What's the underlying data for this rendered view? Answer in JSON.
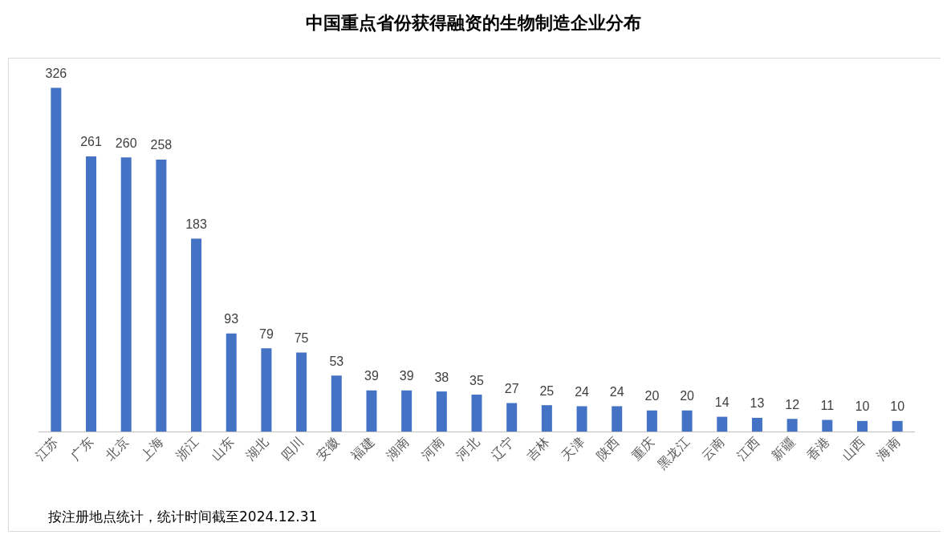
{
  "chart_data": {
    "type": "bar",
    "title": "中国重点省份获得融资的生物制造企业分布",
    "categories": [
      "江苏",
      "广东",
      "北京",
      "上海",
      "浙江",
      "山东",
      "湖北",
      "四川",
      "安徽",
      "福建",
      "湖南",
      "河南",
      "河北",
      "辽宁",
      "吉林",
      "天津",
      "陕西",
      "重庆",
      "黑龙江",
      "云南",
      "江西",
      "新疆",
      "香港",
      "山西",
      "海南"
    ],
    "values": [
      326,
      261,
      260,
      258,
      183,
      93,
      79,
      75,
      53,
      39,
      39,
      38,
      35,
      27,
      25,
      24,
      24,
      20,
      20,
      14,
      13,
      12,
      11,
      10,
      10
    ],
    "color": "#4472c4",
    "data_labels": true,
    "tick_labels": "x",
    "annotations": [
      "按注册地点统计，统计时间截至2024.12.31"
    ]
  }
}
